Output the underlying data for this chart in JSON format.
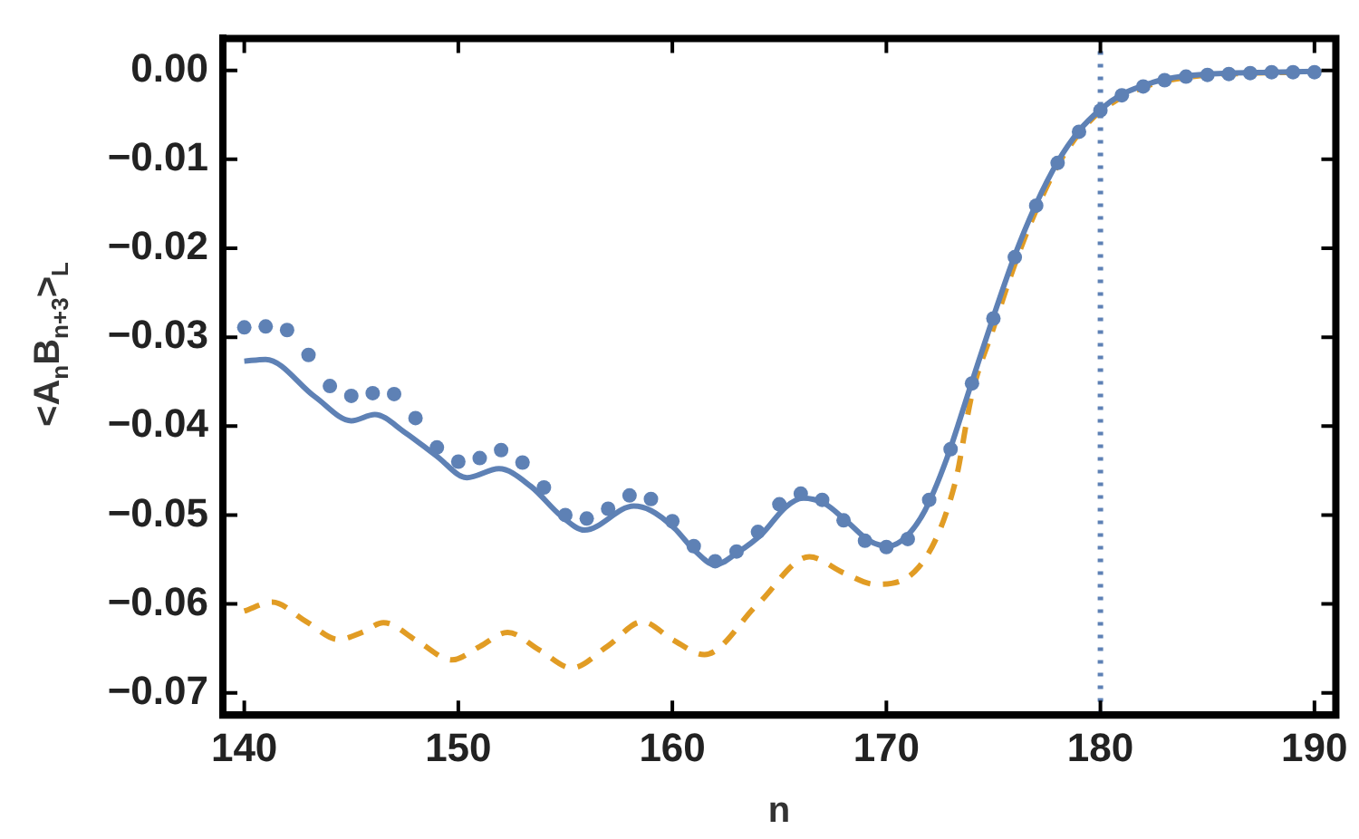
{
  "chart_data": {
    "type": "line",
    "xlabel": "n",
    "ylabel": "<A$_{n}$B$_{n+3}$>$_{L}$",
    "xlim": [
      139,
      191
    ],
    "ylim": [
      -0.0725,
      0.0036
    ],
    "xticks": [
      140,
      150,
      160,
      170,
      180,
      190
    ],
    "yticks": [
      {
        "value": 0,
        "label": "0.00"
      },
      {
        "value": -0.01,
        "label": "−0.01"
      },
      {
        "value": -0.02,
        "label": "−0.02"
      },
      {
        "value": -0.03,
        "label": "−0.03"
      },
      {
        "value": -0.04,
        "label": "−0.04"
      },
      {
        "value": -0.05,
        "label": "−0.05"
      },
      {
        "value": -0.06,
        "label": "−0.06"
      },
      {
        "value": -0.07,
        "label": "−0.07"
      }
    ],
    "grid": false,
    "legend": false,
    "ref_lines": [
      {
        "axis": "x",
        "value": 180,
        "color": "#5e81b5",
        "line_style": "dotted"
      }
    ],
    "series": [
      {
        "type": "scatter",
        "color": "#5e81b5",
        "marker": "circle",
        "x": [
          140,
          141,
          142,
          143,
          144,
          145,
          146,
          147,
          148,
          149,
          150,
          151,
          152,
          153,
          154,
          155,
          156,
          157,
          158,
          159,
          160,
          161,
          162,
          163,
          164,
          165,
          166,
          167,
          168,
          169,
          170,
          171,
          172,
          173,
          174,
          175,
          176,
          177,
          178,
          179,
          180,
          181,
          182,
          183,
          184,
          185,
          186,
          187,
          188,
          189,
          190
        ],
        "values": [
          -0.0289,
          -0.0288,
          -0.0292,
          -0.032,
          -0.0355,
          -0.0366,
          -0.0363,
          -0.0364,
          -0.0391,
          -0.0424,
          -0.044,
          -0.0436,
          -0.0427,
          -0.0441,
          -0.0469,
          -0.05,
          -0.0504,
          -0.0493,
          -0.0478,
          -0.0482,
          -0.0507,
          -0.0535,
          -0.0552,
          -0.0541,
          -0.0519,
          -0.0488,
          -0.0476,
          -0.0483,
          -0.0506,
          -0.0529,
          -0.0536,
          -0.0527,
          -0.0483,
          -0.0426,
          -0.0352,
          -0.0279,
          -0.021,
          -0.0152,
          -0.0104,
          -0.0069,
          -0.0045,
          -0.0028,
          -0.0018,
          -0.0011,
          -0.0007,
          -0.0005,
          -0.0004,
          -0.0003,
          -0.0002,
          -0.0002,
          -0.0002
        ]
      },
      {
        "color": "#5e81b5",
        "marker": "none",
        "line_style": "solid",
        "x": [
          140,
          141,
          143.3,
          145,
          146.1,
          147.5,
          149,
          150.4,
          151.9,
          153.4,
          154.8,
          155.9,
          158.2,
          159,
          160.1,
          161,
          162,
          163,
          164.2,
          165.3,
          166.1,
          167.1,
          168.1,
          169.2,
          170.1,
          170.9,
          171.8,
          172.8,
          174,
          175,
          176,
          177,
          178,
          179,
          180,
          181,
          182,
          183,
          184,
          186,
          188,
          190
        ],
        "values": [
          -0.0327,
          -0.0325,
          -0.0367,
          -0.0394,
          -0.0387,
          -0.0407,
          -0.0434,
          -0.0458,
          -0.0448,
          -0.0468,
          -0.0501,
          -0.0517,
          -0.049,
          -0.0495,
          -0.0515,
          -0.0539,
          -0.0556,
          -0.0543,
          -0.0521,
          -0.0491,
          -0.0481,
          -0.0487,
          -0.0506,
          -0.0529,
          -0.0535,
          -0.0525,
          -0.0495,
          -0.0438,
          -0.035,
          -0.0277,
          -0.0208,
          -0.015,
          -0.0103,
          -0.0068,
          -0.0044,
          -0.0027,
          -0.0017,
          -0.001,
          -0.0006,
          -0.0003,
          -0.0002,
          -0.0001
        ]
      },
      {
        "color": "#e19c24",
        "marker": "none",
        "line_style": "dashed",
        "x": [
          140,
          141.3,
          142.9,
          144.4,
          145.5,
          146.5,
          148.1,
          149.7,
          151,
          152.3,
          153.8,
          155.3,
          157,
          158.6,
          160,
          161.5,
          164,
          166.4,
          168,
          169.5,
          171.5,
          173.2,
          174,
          175,
          176,
          177,
          178,
          179,
          180,
          182,
          184,
          187,
          190
        ],
        "values": [
          -0.0608,
          -0.0598,
          -0.062,
          -0.064,
          -0.0632,
          -0.0621,
          -0.0642,
          -0.0663,
          -0.0648,
          -0.0632,
          -0.0652,
          -0.0672,
          -0.0647,
          -0.062,
          -0.064,
          -0.0657,
          -0.06,
          -0.0547,
          -0.0565,
          -0.0578,
          -0.0559,
          -0.0465,
          -0.0364,
          -0.029,
          -0.0218,
          -0.0157,
          -0.0107,
          -0.0071,
          -0.0046,
          -0.0019,
          -0.0008,
          -0.0003,
          -0.0002
        ]
      }
    ]
  }
}
